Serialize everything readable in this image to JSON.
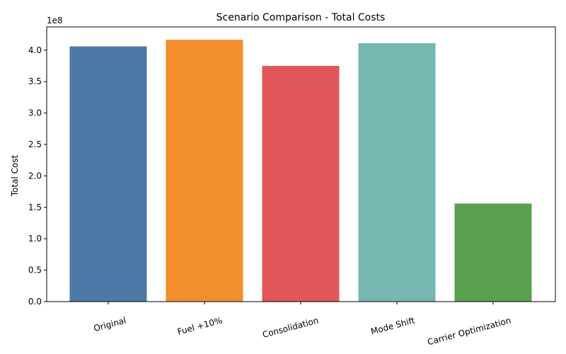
{
  "chart_data": {
    "type": "bar",
    "title": "Scenario Comparison - Total Costs",
    "xlabel": "",
    "ylabel": "Total Cost",
    "y_scale_label": "1e8",
    "categories": [
      "Original",
      "Fuel +10%",
      "Consolidation",
      "Mode Shift",
      "Carrier Optimization"
    ],
    "values": [
      406000000,
      416500000,
      375000000,
      411000000,
      156000000
    ],
    "colors": [
      "#4e79a7",
      "#f28e2b",
      "#e15759",
      "#76b7b2",
      "#59a14f"
    ],
    "ylim": [
      0,
      437000000
    ],
    "yticks": [
      0,
      50000000,
      100000000,
      150000000,
      200000000,
      250000000,
      300000000,
      350000000,
      400000000
    ],
    "ytick_labels": [
      "0.0",
      "0.5",
      "1.0",
      "1.5",
      "2.0",
      "2.5",
      "3.0",
      "3.5",
      "4.0"
    ],
    "grid": false,
    "legend": "none"
  }
}
